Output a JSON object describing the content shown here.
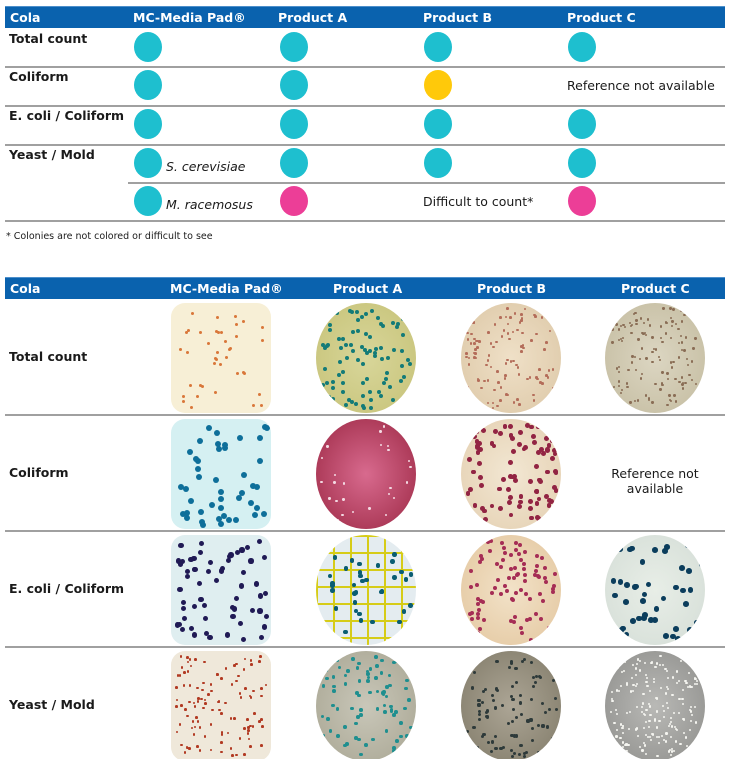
{
  "colors": {
    "header": "#0a62ae",
    "good": "#1ebfcf",
    "warn": "#ffc90a",
    "bad": "#ec3e97"
  },
  "summary": {
    "headers": [
      "Cola",
      "MC-Media Pad®",
      "Product A",
      "Product B",
      "Product C"
    ],
    "rows": [
      {
        "label": "Total count",
        "cells": [
          "good",
          "good",
          "good",
          "good"
        ]
      },
      {
        "label": "Coliform",
        "cells": [
          "good",
          "good",
          "warn",
          "Reference not available"
        ]
      },
      {
        "label": "E. coli / Coliform",
        "cells": [
          "good",
          "good",
          "good",
          "good"
        ]
      },
      {
        "label": "Yeast / Mold",
        "sub": "S. cerevisiae",
        "cells": [
          "good",
          "good",
          "good",
          "good"
        ]
      },
      {
        "label": "",
        "sub": "M. racemosus",
        "cells": [
          "good",
          "bad",
          "Difficult to count*",
          "bad"
        ]
      }
    ],
    "footnote": "* Colonies are not colored or difficult to see"
  },
  "images": {
    "headers": [
      "Cola",
      "MC-Media Pad®",
      "Product A",
      "Product B",
      "Product C"
    ],
    "rows": [
      {
        "label": "Total count"
      },
      {
        "label": "Coliform",
        "na_text": "Reference not available"
      },
      {
        "label": "E. coli / Coliform"
      },
      {
        "label": "Yeast / Mold"
      }
    ]
  }
}
